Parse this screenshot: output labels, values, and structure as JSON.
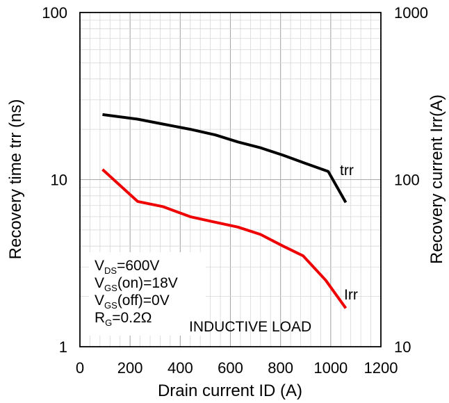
{
  "chart_data": {
    "type": "line",
    "xlabel": "Drain current ID (A)",
    "ylabel_left": "Recovery time trr (ns)",
    "ylabel_right": "Recovery current Irr(A)",
    "xlim": [
      0,
      1200
    ],
    "ylim_left": [
      1,
      100
    ],
    "ylim_right": [
      10,
      1000
    ],
    "y_scale": "log",
    "grid": true,
    "x_ticks": [
      "0",
      "200",
      "400",
      "600",
      "800",
      "1000",
      "1200"
    ],
    "y_left_ticks": [
      "1",
      "10",
      "100"
    ],
    "y_right_ticks": [
      "10",
      "100",
      "1000"
    ],
    "colors": {
      "trr": "#000000",
      "Irr": "#ee0000"
    },
    "series": [
      {
        "name": "trr",
        "axis": "left",
        "x": [
          90,
          230,
          330,
          440,
          540,
          630,
          720,
          810,
          900,
          990,
          1060
        ],
        "y": [
          24.5,
          23.0,
          21.5,
          20.0,
          18.5,
          16.8,
          15.5,
          14.0,
          12.5,
          11.2,
          7.3
        ]
      },
      {
        "name": "Irr",
        "axis": "right",
        "x": [
          90,
          230,
          330,
          440,
          530,
          630,
          720,
          810,
          890,
          980,
          1060
        ],
        "y": [
          115,
          74,
          69,
          60,
          56,
          52,
          47,
          40,
          35,
          25,
          17
        ]
      }
    ]
  },
  "annotations": {
    "conditions": [
      {
        "main": "V",
        "sub": "DS",
        "rest": "=600V"
      },
      {
        "main": "V",
        "sub": "GS",
        "rest": "(on)=18V"
      },
      {
        "main": "V",
        "sub": "GS",
        "rest": "(off)=0V"
      },
      {
        "main": "R",
        "sub": "G",
        "rest": "=0.2Ω"
      }
    ],
    "load": "INDUCTIVE LOAD"
  }
}
